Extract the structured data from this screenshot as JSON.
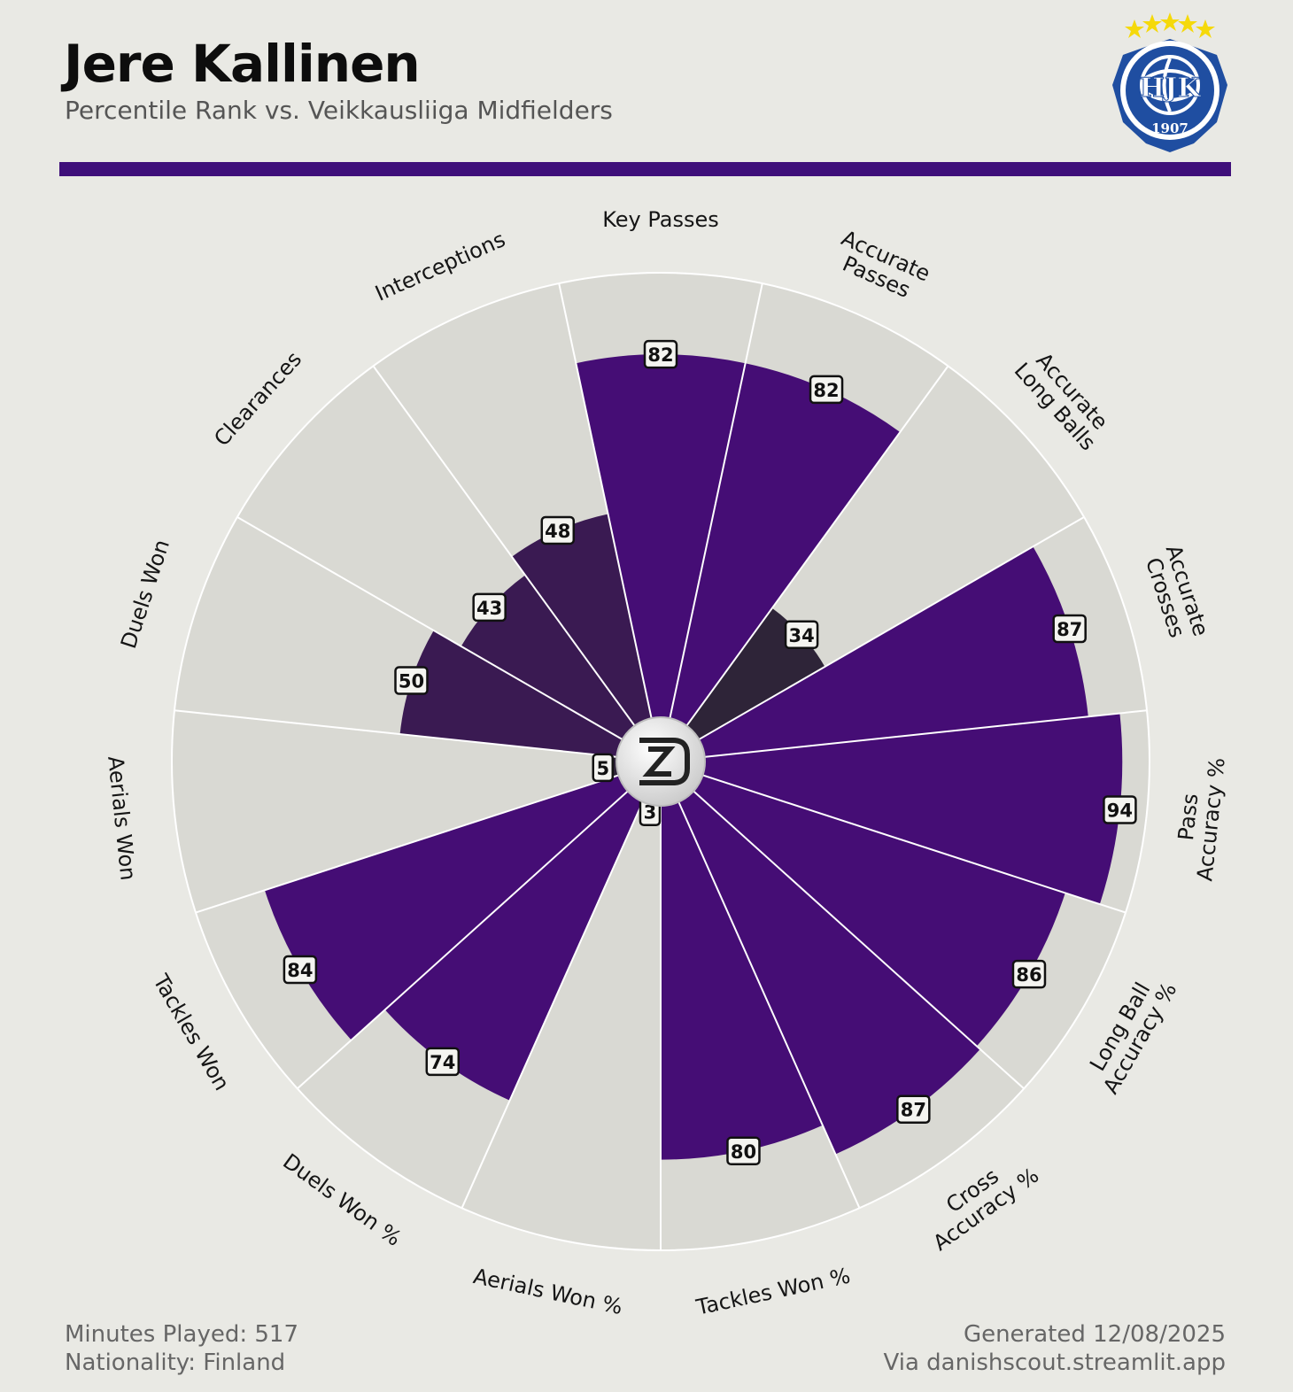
{
  "header": {
    "title": "Jere Kallinen",
    "subtitle": "Percentile Rank vs. Veikkausliiga Midfielders"
  },
  "badge": {
    "icon": "hjk-club-crest-icon",
    "text": "HJK",
    "year": "1907",
    "stars": 5,
    "colors": {
      "blue": "#1f4ea1",
      "star": "#f5d90a"
    }
  },
  "center_logo": {
    "icon": "danishscout-logo-icon"
  },
  "colors": {
    "background": "#e9e9e4",
    "slice_background": "#d9d9d3",
    "accent": "#3f0f7a",
    "high": "#450d75",
    "mid": "#3a1a52",
    "low": "#2e2438"
  },
  "chart_data": {
    "type": "bar",
    "subtype": "polar-pizza",
    "categories": [
      "Key Passes",
      "Accurate Passes",
      "Accurate Long Balls",
      "Accurate Crosses",
      "Pass Accuracy %",
      "Long Ball Accuracy %",
      "Cross Accuracy %",
      "Tackles Won %",
      "Aerials Won %",
      "Duels Won %",
      "Tackles Won",
      "Aerials Won",
      "Duels Won",
      "Clearances",
      "Interceptions"
    ],
    "label_lines": [
      [
        "Key Passes"
      ],
      [
        "Accurate",
        "Passes"
      ],
      [
        "Accurate",
        "Long Balls"
      ],
      [
        "Accurate",
        "Crosses"
      ],
      [
        "Pass",
        "Accuracy %"
      ],
      [
        "Long Ball",
        "Accuracy %"
      ],
      [
        "Cross",
        "Accuracy %"
      ],
      [
        "Tackles Won %"
      ],
      [
        "Aerials Won %"
      ],
      [
        "Duels Won %"
      ],
      [
        "Tackles Won"
      ],
      [
        "Aerials Won"
      ],
      [
        "Duels Won"
      ],
      [
        "Clearances"
      ],
      [
        "Interceptions"
      ]
    ],
    "values": [
      82,
      82,
      34,
      87,
      94,
      86,
      87,
      80,
      3,
      74,
      84,
      5,
      50,
      43,
      48
    ],
    "ylim": [
      0,
      100
    ],
    "direction": "clockwise",
    "start": "top"
  },
  "footer": {
    "minutes": "Minutes Played: 517",
    "nationality": "Nationality: Finland",
    "generated": "Generated 12/08/2025",
    "source": "Via danishscout.streamlit.app"
  }
}
